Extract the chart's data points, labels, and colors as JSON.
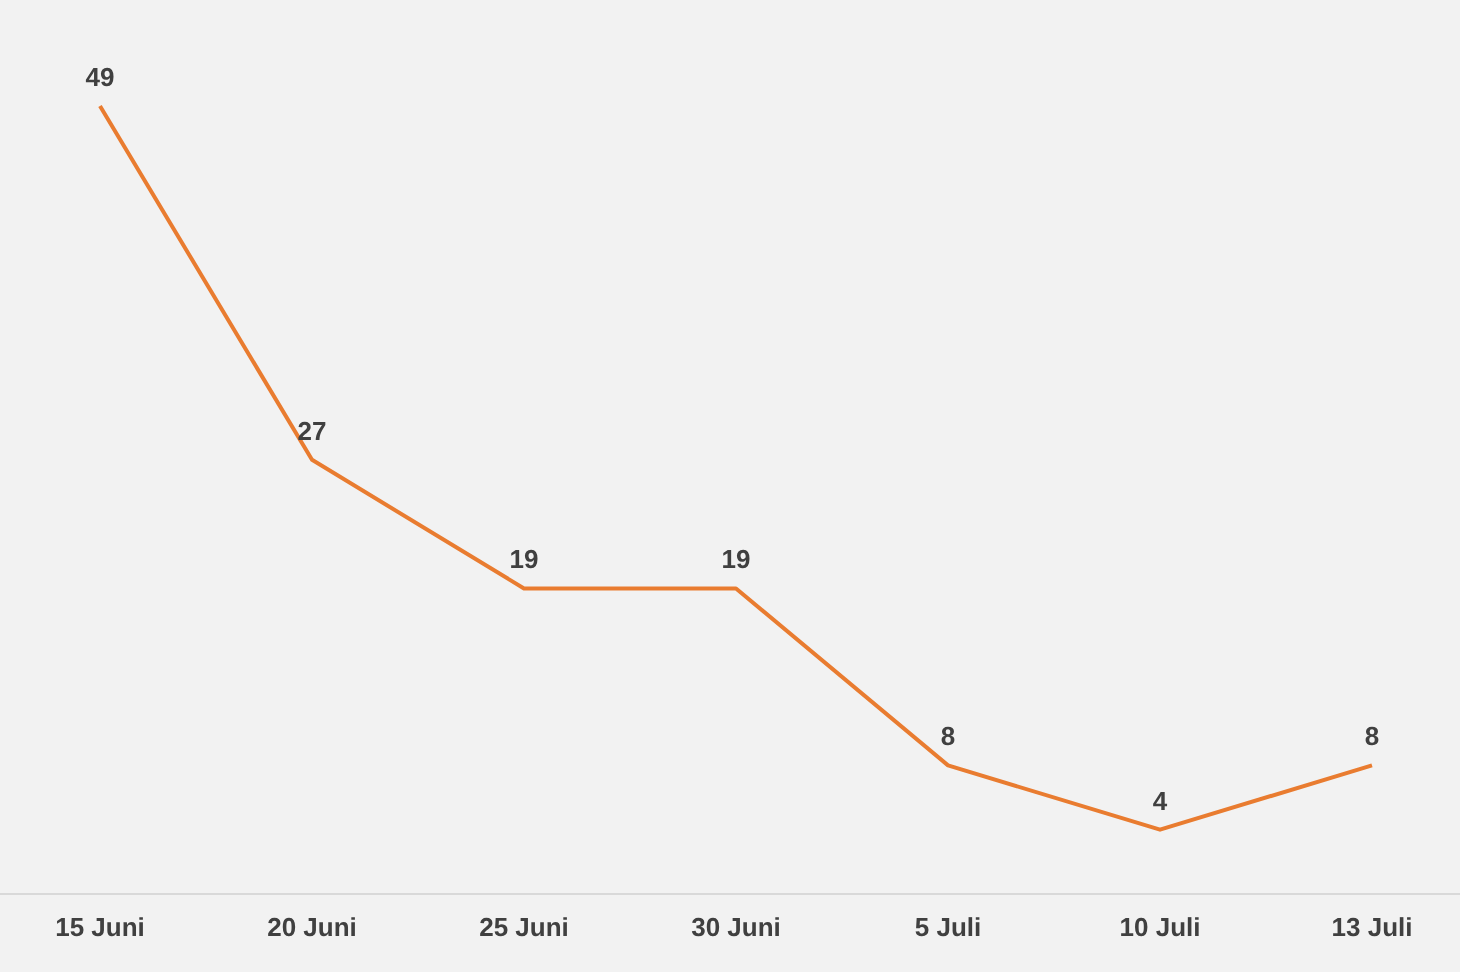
{
  "chart_data": {
    "type": "line",
    "categories": [
      "15 Juni",
      "20 Juni",
      "25 Juni",
      "30 Juni",
      "5 Juli",
      "10 Juli",
      "13 Juli"
    ],
    "series": [
      {
        "color": "#e97c30",
        "values": [
          49,
          27,
          19,
          19,
          8,
          4,
          8
        ]
      }
    ],
    "data_labels": true,
    "grid": false,
    "marker": "none",
    "line_style": "solid"
  }
}
